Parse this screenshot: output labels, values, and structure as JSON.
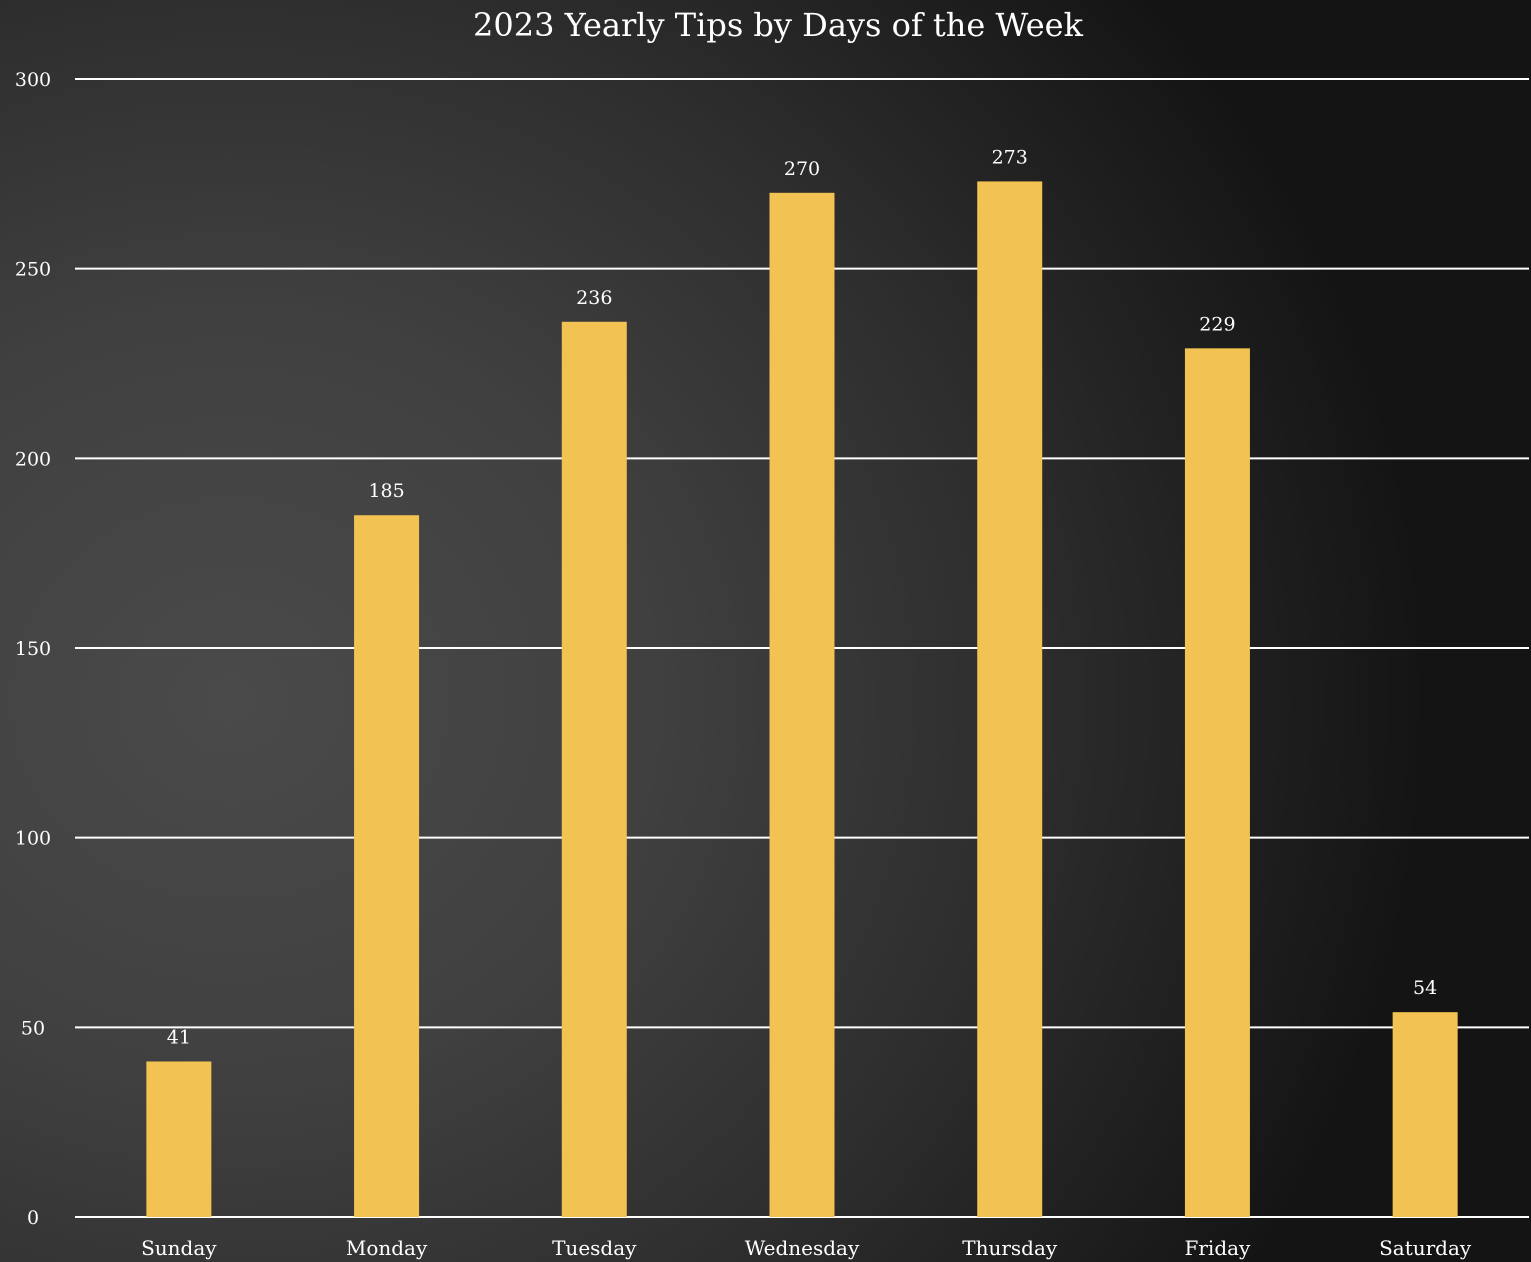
{
  "colors": {
    "bar": "#F2C352",
    "grid": "#FFFFFF",
    "text": "#FFFFFF"
  },
  "chart_data": {
    "type": "bar",
    "title": "2023 Yearly Tips by Days of the Week",
    "xlabel": "",
    "ylabel": "",
    "categories": [
      "Sunday",
      "Monday",
      "Tuesday",
      "Wednesday",
      "Thursday",
      "Friday",
      "Saturday"
    ],
    "values": [
      41,
      185,
      236,
      270,
      273,
      229,
      54
    ],
    "data_labels": [
      "41",
      "185",
      "236",
      "270",
      "273",
      "229",
      "54"
    ],
    "ylim": [
      0,
      300
    ],
    "yticks": [
      0,
      50,
      100,
      150,
      200,
      250,
      300
    ],
    "grid": true,
    "legend": "none"
  }
}
